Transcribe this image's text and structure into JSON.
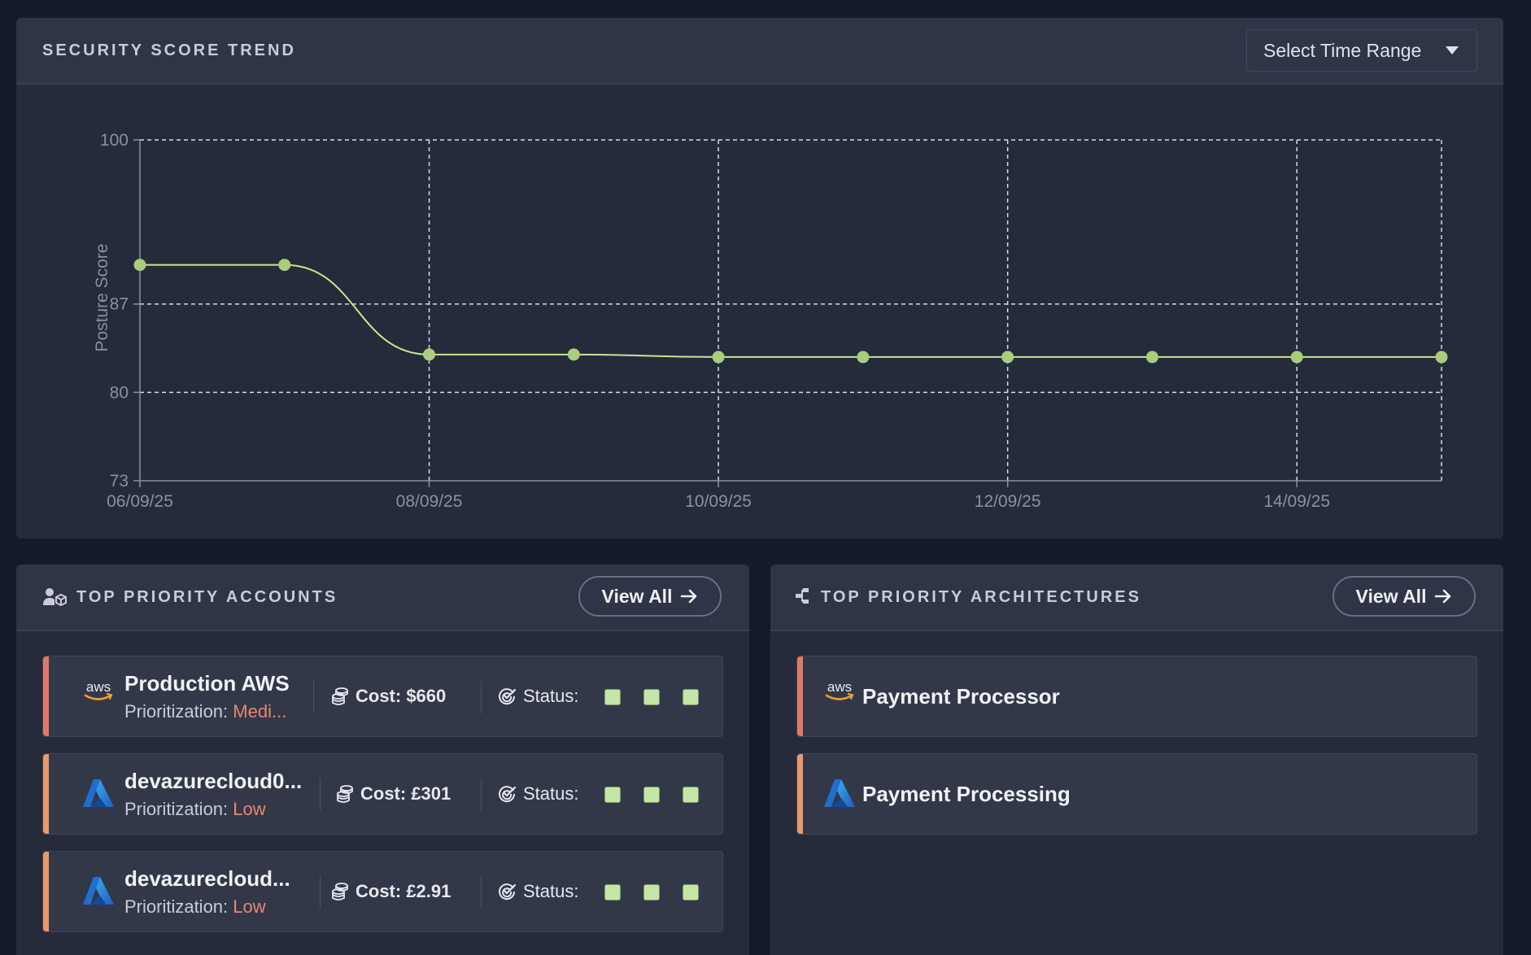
{
  "trend": {
    "title": "SECURITY SCORE TREND",
    "time_range_label": "Select Time Range"
  },
  "chart_data": {
    "type": "line",
    "ylabel": "Posture Score",
    "xlabel": "",
    "ylim": [
      73,
      100
    ],
    "yticks": [
      100,
      87,
      80,
      73
    ],
    "xticks": [
      "06/09/25",
      "08/09/25",
      "10/09/25",
      "12/09/25",
      "14/09/25"
    ],
    "x": [
      "06/09/25",
      "07/09/25",
      "08/09/25",
      "09/09/25",
      "10/09/25",
      "11/09/25",
      "12/09/25",
      "13/09/25",
      "14/09/25",
      "15/09/25"
    ],
    "series": [
      {
        "values": [
          90.1,
          90.1,
          83.0,
          83.0,
          82.8,
          82.8,
          82.8,
          82.8,
          82.8,
          82.8
        ]
      }
    ],
    "line_color": "#c5e88e",
    "grid": true
  },
  "accounts": {
    "title": "TOP PRIORITY ACCOUNTS",
    "view_all": "View All",
    "items": [
      {
        "logo": "aws-logo",
        "name": "Production AWS",
        "prio_label": "Prioritization:",
        "prio_value": "Medi...",
        "cost": "Cost: $660",
        "status_label": "Status:",
        "stripe": "#e07a68"
      },
      {
        "logo": "azure-logo",
        "name": "devazurecloud0...",
        "prio_label": "Prioritization:",
        "prio_value": "Low",
        "cost": "Cost: £301",
        "status_label": "Status:",
        "stripe": "#e99a6c"
      },
      {
        "logo": "azure-logo",
        "name": "devazurecloud...",
        "prio_label": "Prioritization:",
        "prio_value": "Low",
        "cost": "Cost: £2.91",
        "status_label": "Status:",
        "stripe": "#e99a6c"
      }
    ]
  },
  "architectures": {
    "title": "TOP PRIORITY ARCHITECTURES",
    "view_all": "View All",
    "items": [
      {
        "logo": "aws-logo",
        "name": "Payment Processor",
        "stripe": "#e07a68"
      },
      {
        "logo": "azure-logo",
        "name": "Payment Processing",
        "stripe": "#e99a6c"
      }
    ]
  },
  "colors": {
    "accent_orange": "#e8866e",
    "status_green": "#c5e6a6"
  }
}
